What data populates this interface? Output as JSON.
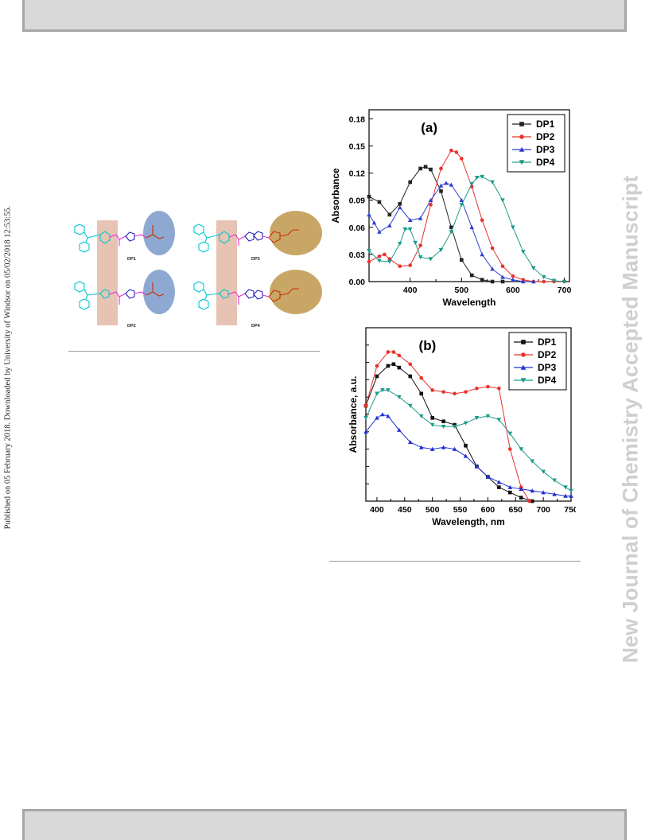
{
  "page": {
    "side_note": "Published on 05 February 2018. Downloaded by University of Windsor on 05/02/2018 12:53:55.",
    "watermark": "New Journal of Chemistry Accepted Manuscript"
  },
  "scheme": {
    "labels": [
      "DP1",
      "DP3",
      "DP2",
      "DP4"
    ],
    "colors": {
      "donor": "#00c8d2",
      "pi_bridge": "#2020c0",
      "vinyl": "#e030d0",
      "acceptor": "#c83000",
      "highlight_blue": "#8ea9d1",
      "highlight_gold": "#c8a766",
      "highlight_pink": "#e3b9a6"
    }
  },
  "chart_data": [
    {
      "type": "line",
      "panel_label": "(a)",
      "xlabel": "Wavelength",
      "ylabel": "Absorbance",
      "xlim": [
        320,
        710
      ],
      "ylim": [
        0,
        0.19
      ],
      "xticks": [
        400,
        500,
        600,
        700
      ],
      "yticks": [
        "0.00",
        "0.03",
        "0.06",
        "0.09",
        "0.12",
        "0.15",
        "0.18"
      ],
      "legend_position": "top-right",
      "series": [
        {
          "name": "DP1",
          "color": "#222222",
          "marker": "square",
          "x": [
            320,
            340,
            360,
            380,
            400,
            420,
            430,
            440,
            460,
            480,
            500,
            520,
            540,
            560,
            580
          ],
          "y": [
            0.094,
            0.088,
            0.074,
            0.086,
            0.11,
            0.125,
            0.127,
            0.124,
            0.1,
            0.06,
            0.024,
            0.007,
            0.002,
            0.0,
            0.0
          ]
        },
        {
          "name": "DP2",
          "color": "#e8322c",
          "marker": "circle",
          "x": [
            320,
            340,
            350,
            360,
            380,
            400,
            420,
            440,
            460,
            480,
            490,
            500,
            520,
            540,
            560,
            580,
            600,
            620,
            640,
            660,
            680,
            700
          ],
          "y": [
            0.022,
            0.028,
            0.03,
            0.025,
            0.017,
            0.018,
            0.04,
            0.085,
            0.125,
            0.145,
            0.143,
            0.136,
            0.105,
            0.068,
            0.037,
            0.017,
            0.006,
            0.002,
            0.0,
            0.0,
            0.0,
            0.0
          ]
        },
        {
          "name": "DP3",
          "color": "#3040d0",
          "marker": "triangle-up",
          "x": [
            320,
            330,
            340,
            360,
            380,
            400,
            420,
            440,
            460,
            470,
            480,
            500,
            520,
            540,
            560,
            580,
            600,
            620,
            640
          ],
          "y": [
            0.074,
            0.065,
            0.055,
            0.062,
            0.082,
            0.068,
            0.07,
            0.09,
            0.106,
            0.109,
            0.107,
            0.09,
            0.06,
            0.03,
            0.014,
            0.005,
            0.002,
            0.0,
            0.0
          ]
        },
        {
          "name": "DP4",
          "color": "#1a9a8a",
          "marker": "triangle-down",
          "x": [
            320,
            340,
            360,
            380,
            390,
            400,
            410,
            420,
            440,
            460,
            480,
            500,
            520,
            530,
            540,
            560,
            580,
            600,
            620,
            640,
            660,
            680,
            700
          ],
          "y": [
            0.034,
            0.023,
            0.022,
            0.042,
            0.058,
            0.058,
            0.043,
            0.027,
            0.025,
            0.035,
            0.055,
            0.085,
            0.108,
            0.115,
            0.116,
            0.11,
            0.09,
            0.06,
            0.033,
            0.015,
            0.005,
            0.001,
            0.0
          ]
        }
      ]
    },
    {
      "type": "line",
      "panel_label": "(b)",
      "xlabel": "Wavelength, nm",
      "ylabel": "Absorbance, a.u.",
      "xlim": [
        380,
        750
      ],
      "ylim": [
        0,
        1
      ],
      "xticks": [
        400,
        450,
        500,
        550,
        600,
        650,
        700,
        750
      ],
      "yticks": [],
      "legend_position": "top-right",
      "series": [
        {
          "name": "DP1",
          "color": "#111111",
          "marker": "square",
          "x": [
            380,
            400,
            420,
            430,
            440,
            460,
            480,
            500,
            520,
            540,
            560,
            580,
            600,
            620,
            640,
            660,
            680
          ],
          "y": [
            0.55,
            0.72,
            0.78,
            0.79,
            0.77,
            0.72,
            0.62,
            0.48,
            0.46,
            0.44,
            0.32,
            0.2,
            0.14,
            0.08,
            0.05,
            0.02,
            0.0
          ]
        },
        {
          "name": "DP2",
          "color": "#e8322c",
          "marker": "circle",
          "x": [
            380,
            400,
            420,
            430,
            440,
            460,
            480,
            500,
            520,
            540,
            560,
            580,
            600,
            620,
            640,
            660,
            675
          ],
          "y": [
            0.55,
            0.78,
            0.86,
            0.86,
            0.84,
            0.79,
            0.71,
            0.64,
            0.63,
            0.62,
            0.63,
            0.65,
            0.66,
            0.65,
            0.3,
            0.08,
            0.0
          ]
        },
        {
          "name": "DP3",
          "color": "#2030d0",
          "marker": "triangle-up",
          "x": [
            380,
            400,
            410,
            420,
            440,
            460,
            480,
            500,
            520,
            540,
            560,
            580,
            600,
            620,
            640,
            660,
            680,
            700,
            720,
            740,
            750
          ],
          "y": [
            0.4,
            0.48,
            0.5,
            0.49,
            0.41,
            0.34,
            0.31,
            0.3,
            0.31,
            0.3,
            0.26,
            0.2,
            0.14,
            0.11,
            0.08,
            0.07,
            0.06,
            0.05,
            0.04,
            0.03,
            0.03
          ]
        },
        {
          "name": "DP4",
          "color": "#1a9a8a",
          "marker": "triangle-down",
          "x": [
            380,
            400,
            410,
            420,
            440,
            460,
            480,
            500,
            520,
            540,
            560,
            580,
            600,
            620,
            640,
            660,
            680,
            700,
            720,
            740,
            750
          ],
          "y": [
            0.48,
            0.62,
            0.64,
            0.64,
            0.6,
            0.55,
            0.49,
            0.44,
            0.43,
            0.43,
            0.45,
            0.48,
            0.49,
            0.47,
            0.39,
            0.3,
            0.23,
            0.17,
            0.12,
            0.08,
            0.06
          ]
        }
      ]
    }
  ]
}
